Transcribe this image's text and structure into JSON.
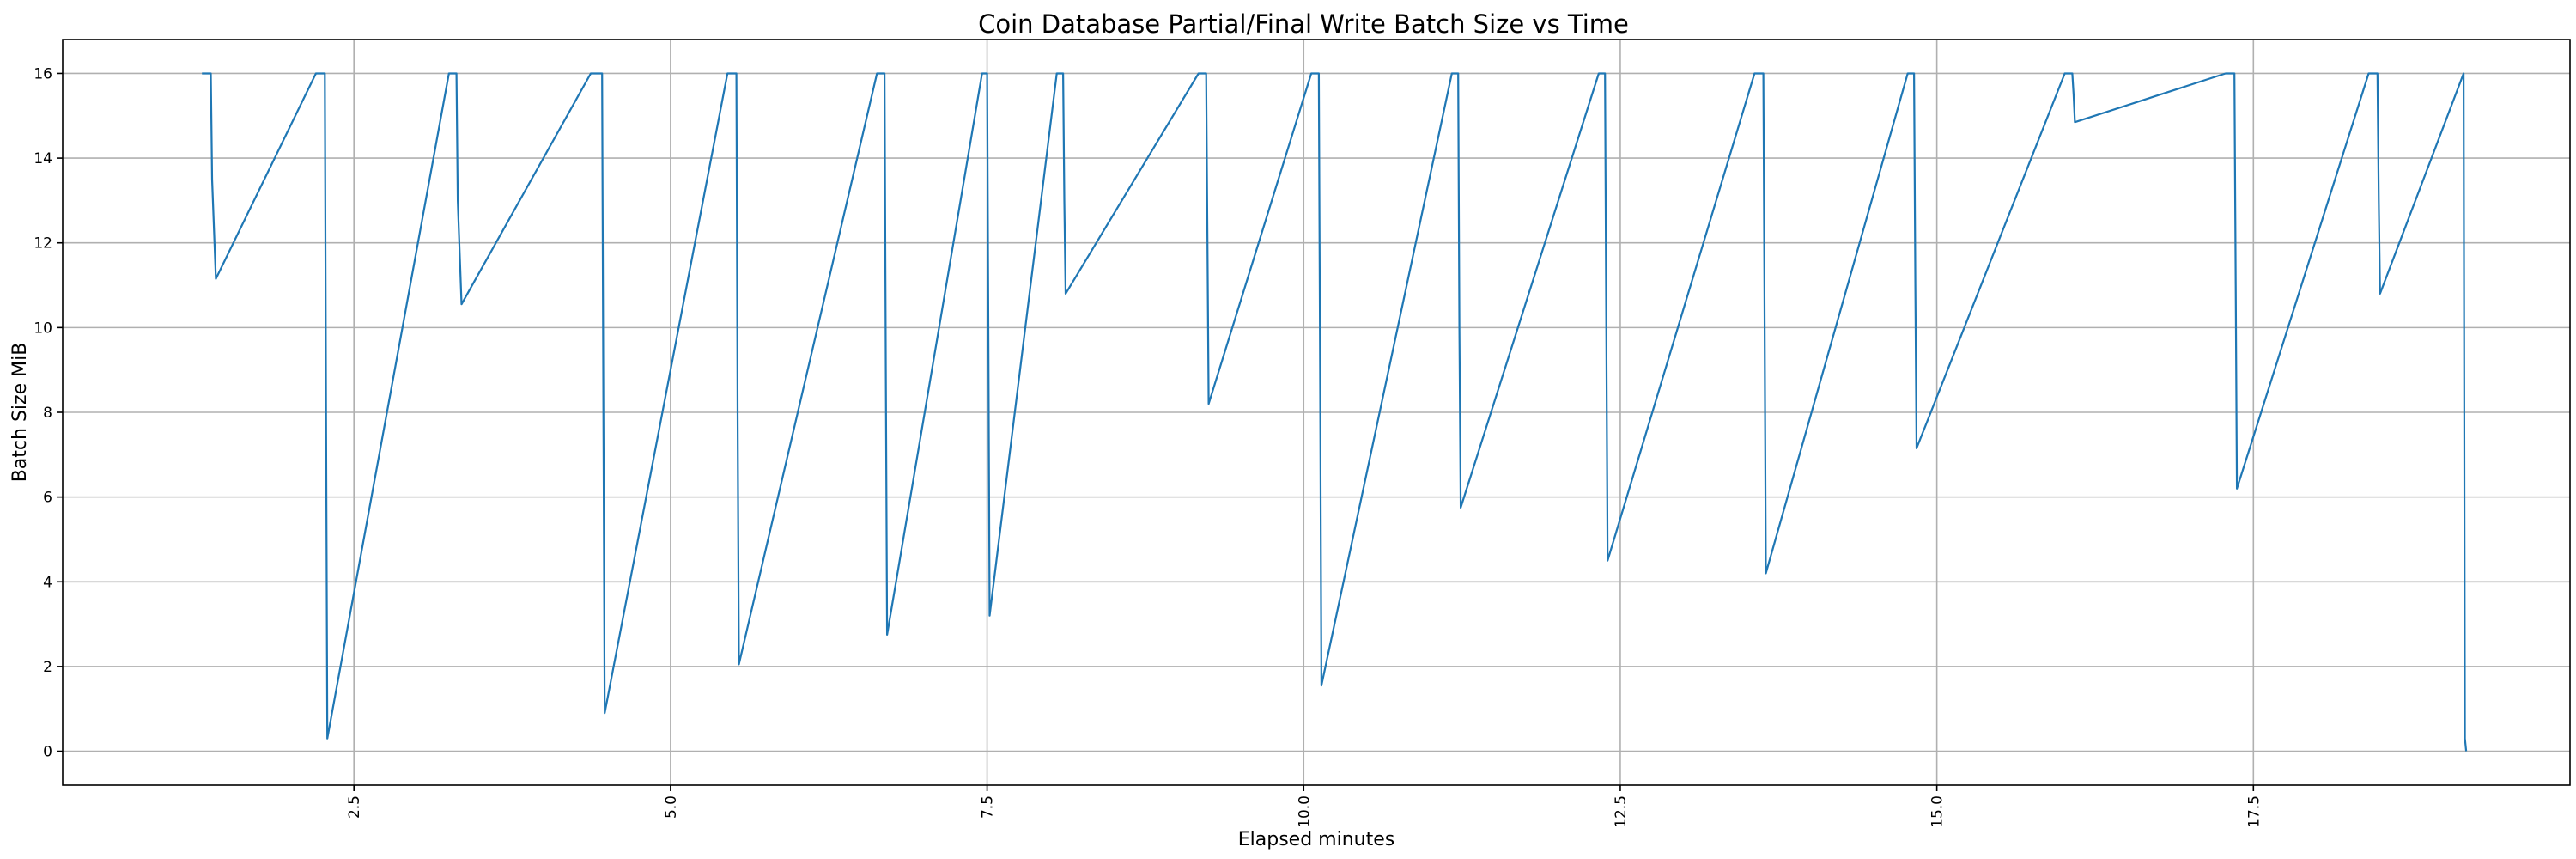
{
  "chart_data": {
    "type": "line",
    "title": "Coin Database Partial/Final Write Batch Size vs Time",
    "xlabel": "Elapsed minutes",
    "ylabel": "Batch Size MiB",
    "xlim": [
      0.2,
      20.0
    ],
    "ylim": [
      -0.8,
      16.8
    ],
    "xticks": [
      2.5,
      5.0,
      7.5,
      10.0,
      12.5,
      15.0,
      17.5
    ],
    "xtick_labels": [
      "2.5",
      "5.0",
      "7.5",
      "10.0",
      "12.5",
      "15.0",
      "17.5"
    ],
    "yticks": [
      0,
      2,
      4,
      6,
      8,
      10,
      12,
      14,
      16
    ],
    "ytick_labels": [
      "0",
      "2",
      "4",
      "6",
      "8",
      "10",
      "12",
      "14",
      "16"
    ],
    "grid": true,
    "xtick_rotation": 90,
    "series": [
      {
        "color": "#1f77b4",
        "x": [
          1.3,
          1.37,
          1.38,
          1.41,
          2.2,
          2.27,
          2.28,
          2.29,
          3.25,
          3.31,
          3.32,
          3.35,
          4.37,
          4.46,
          4.47,
          4.48,
          5.45,
          5.52,
          5.53,
          5.54,
          6.63,
          6.69,
          6.7,
          6.71,
          7.46,
          7.5,
          7.51,
          7.52,
          8.05,
          8.1,
          8.11,
          8.12,
          9.17,
          9.23,
          9.24,
          9.25,
          10.06,
          10.12,
          10.13,
          10.14,
          11.17,
          11.22,
          11.23,
          11.24,
          12.33,
          12.38,
          12.39,
          12.4,
          13.56,
          13.63,
          13.64,
          13.65,
          14.77,
          14.82,
          14.83,
          14.84,
          16.01,
          16.07,
          16.08,
          16.09,
          17.28,
          17.35,
          17.36,
          17.37,
          18.41,
          18.48,
          18.49,
          18.5,
          19.16,
          19.17,
          19.18
        ],
        "y": [
          16.0,
          16.0,
          13.5,
          11.15,
          16.0,
          16.0,
          8.0,
          0.3,
          16.0,
          16.0,
          13.0,
          10.55,
          16.0,
          16.0,
          8.0,
          0.9,
          16.0,
          16.0,
          8.0,
          2.05,
          16.0,
          16.0,
          9.0,
          2.75,
          16.0,
          16.0,
          10.0,
          3.2,
          16.0,
          16.0,
          13.0,
          10.8,
          16.0,
          16.0,
          12.0,
          8.2,
          16.0,
          16.0,
          9.0,
          1.55,
          16.0,
          16.0,
          10.0,
          5.75,
          16.0,
          16.0,
          10.0,
          4.5,
          16.0,
          16.0,
          10.0,
          4.2,
          16.0,
          16.0,
          11.0,
          7.15,
          16.0,
          16.0,
          15.5,
          14.85,
          16.0,
          16.0,
          11.0,
          6.2,
          16.0,
          16.0,
          13.0,
          10.8,
          16.0,
          0.3,
          0.0
        ]
      }
    ]
  }
}
